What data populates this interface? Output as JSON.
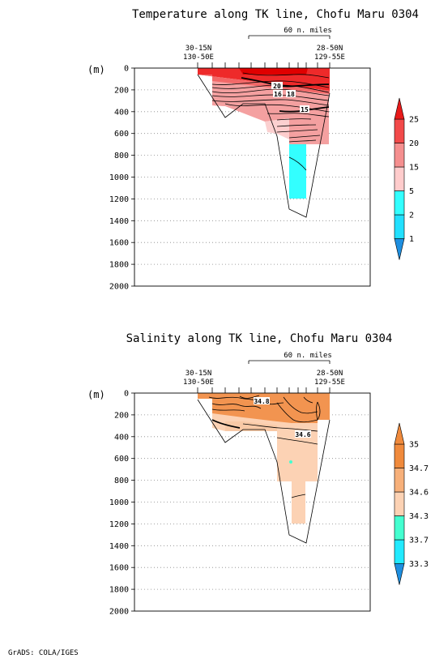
{
  "footer": "GrADS: COLA/IGES",
  "chart_data": [
    {
      "type": "heatmap",
      "title": "Temperature along TK line, Chofu Maru 0304",
      "scale_label": "60 n. miles",
      "left_station": [
        "30-15N",
        "130-50E"
      ],
      "right_station": [
        "28-50N",
        "129-55E"
      ],
      "ylabel": "(m)",
      "y_ticks": [
        "0",
        "200",
        "400",
        "600",
        "800",
        "1000",
        "1200",
        "1400",
        "1600",
        "1800",
        "2000"
      ],
      "ylim": [
        0,
        2000
      ],
      "y_inverted": true,
      "grid": "dotted horizontal",
      "legend_position": "right",
      "colorbar_levels": [
        "1",
        "2",
        "5",
        "15",
        "20",
        "25"
      ],
      "colorbar_colors": [
        "#1e8fe0",
        "#22e0ff",
        "#33ffff",
        "#ffcccc",
        "#f58f8f",
        "#f24a4a",
        "#e81a1a"
      ],
      "contour_labels": [
        "20",
        "16",
        "18",
        "15"
      ]
    },
    {
      "type": "heatmap",
      "title": "Salinity along TK line, Chofu Maru 0304",
      "scale_label": "60 n. miles",
      "left_station": [
        "30-15N",
        "130-50E"
      ],
      "right_station": [
        "28-50N",
        "129-55E"
      ],
      "ylabel": "(m)",
      "y_ticks": [
        "0",
        "200",
        "400",
        "600",
        "800",
        "1000",
        "1200",
        "1400",
        "1600",
        "1800",
        "2000"
      ],
      "ylim": [
        0,
        2000
      ],
      "y_inverted": true,
      "grid": "dotted horizontal",
      "legend_position": "right",
      "colorbar_levels": [
        "33.3",
        "33.7",
        "34.3",
        "34.6",
        "34.7",
        "35"
      ],
      "colorbar_colors": [
        "#1e8fe0",
        "#22eaff",
        "#44ffd0",
        "#fcd2b4",
        "#f7b07a",
        "#f08a3c",
        "#f08a3c"
      ],
      "contour_labels": [
        "34.8",
        "34.6"
      ]
    }
  ]
}
